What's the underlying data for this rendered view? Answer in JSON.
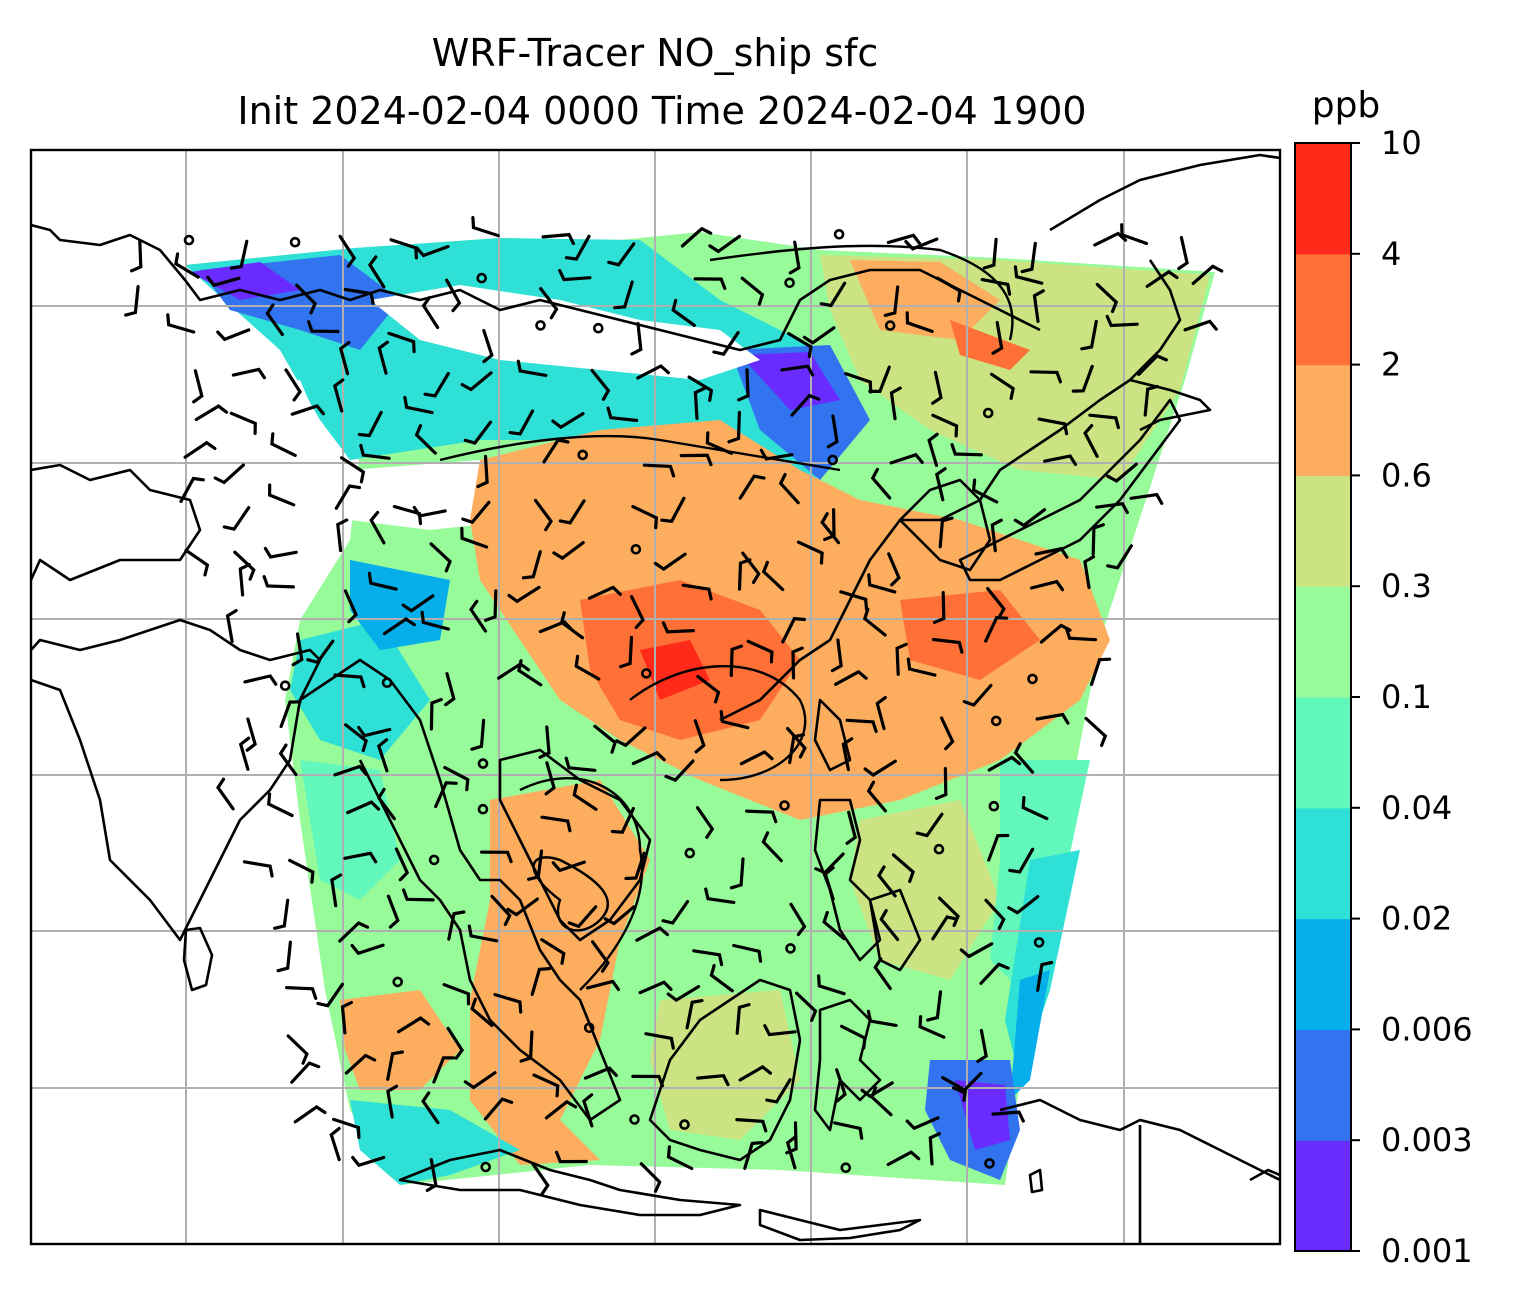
{
  "chart_data": {
    "type": "heatmap",
    "title_line1": "WRF-Tracer NO_ship sfc",
    "title_line2": "Init 2024-02-04 0000 Time 2024-02-04 1900",
    "colorbar": {
      "unit": "ppb",
      "levels": [
        "0.001",
        "0.003",
        "0.006",
        "0.02",
        "0.04",
        "0.1",
        "0.3",
        "0.6",
        "2",
        "4",
        "10"
      ],
      "colors": [
        "#6a2bff",
        "#3273f0",
        "#06aeea",
        "#2ee0d5",
        "#62f8bc",
        "#97fb9a",
        "#cbe382",
        "#fdad5e",
        "#ff7037",
        "#ff2a1a"
      ]
    },
    "grid": true,
    "legend_placement": "right colorbar",
    "map_overlays": [
      "coastlines",
      "gridlines",
      "wind-barbs",
      "contours"
    ]
  }
}
